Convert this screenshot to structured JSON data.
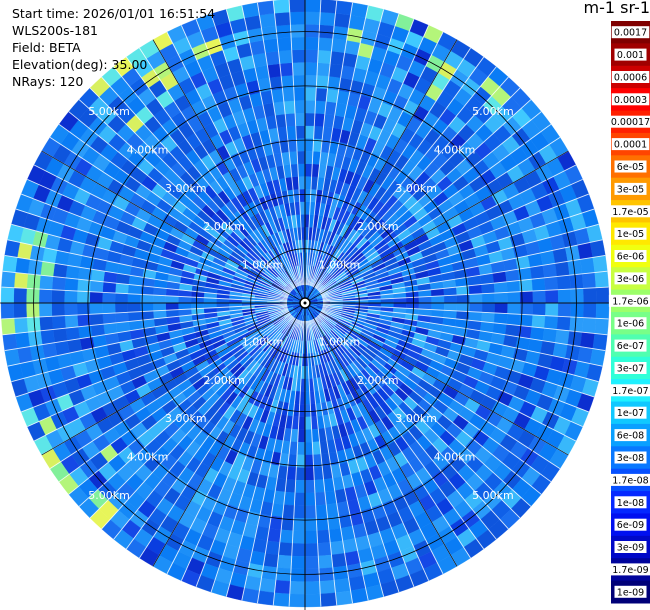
{
  "info": {
    "start_time": "Start time: 2026/01/01 16:51:54",
    "instrument": "WLS200s-181",
    "field": "Field: BETA",
    "elevation": "Elevation(deg): 35.00",
    "nrays": "NRays: 120"
  },
  "chart_data": {
    "type": "heatmap",
    "projection": "polar PPI",
    "field": "BETA",
    "elevation_deg": 35.0,
    "n_rays": 120,
    "range_rings_km": [
      "1.00km",
      "2.00km",
      "3.00km",
      "4.00km",
      "5.00km"
    ],
    "max_range_km": 5.6,
    "colorbar": {
      "unit_label": "m-1 sr-1",
      "scale": "log",
      "labels_top_to_bottom": [
        "0.0017",
        "0.001",
        "0.0006",
        "0.0003",
        "0.00017",
        "0.0001",
        "6e-05",
        "3e-05",
        "1.7e-05",
        "1e-05",
        "6e-06",
        "3e-06",
        "1.7e-06",
        "1e-06",
        "6e-07",
        "3e-07",
        "1.7e-07",
        "1e-07",
        "6e-08",
        "3e-08",
        "1.7e-08",
        "1e-08",
        "6e-09",
        "3e-09",
        "1.7e-09",
        "1e-09"
      ],
      "colors_top_to_bottom": [
        "#800000",
        "#a00000",
        "#cc0000",
        "#ff0000",
        "#ff2000",
        "#ff4500",
        "#ff7000",
        "#ff9a00",
        "#ffc400",
        "#ffe800",
        "#f0ff10",
        "#c8ff40",
        "#9cff6a",
        "#78ff88",
        "#50ffb0",
        "#30ffd8",
        "#20f0ff",
        "#10c8ff",
        "#0aa0ff",
        "#0878ff",
        "#0650ff",
        "#0428ff",
        "#0010f0",
        "#0008c8",
        "#00049c",
        "#000078"
      ]
    },
    "field_summary": "Dominant values 1e-08 to 6e-08 (blue) across the scan; higher values up to about 1e-06 (green/yellow) at far range toward north-northwest, north, northeast, west and southwest."
  }
}
